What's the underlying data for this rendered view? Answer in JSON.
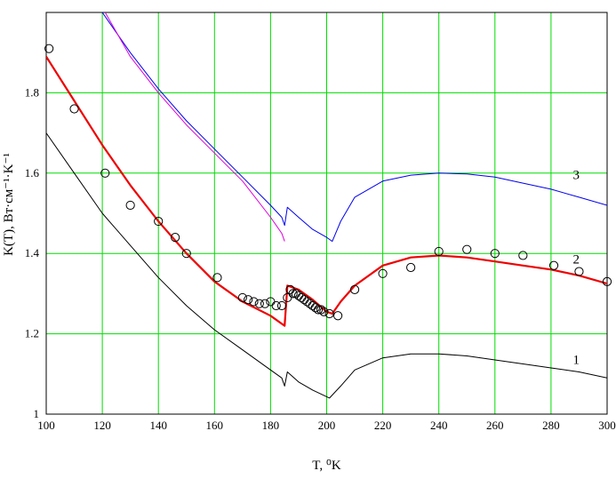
{
  "chart_data": {
    "type": "line",
    "xlabel": "T, ⁰K",
    "ylabel": "K(T), Вт·см⁻¹·K⁻¹",
    "xlim": [
      100,
      300
    ],
    "ylim": [
      1.0,
      2.0
    ],
    "x_ticks": [
      100,
      120,
      140,
      160,
      180,
      200,
      220,
      240,
      260,
      280,
      300
    ],
    "y_ticks": [
      1,
      1.2,
      1.4,
      1.6,
      1.8
    ],
    "x_tick_labels": [
      "100",
      "120",
      "140",
      "160",
      "180",
      "200",
      "220",
      "240",
      "260",
      "280",
      "300"
    ],
    "y_tick_labels": [
      "1",
      "1.2",
      "1.4",
      "1.6",
      "1.8"
    ],
    "grid": true,
    "grid_color": "#00dd00",
    "series": [
      {
        "name": "1",
        "color": "#000000",
        "width": 1,
        "x": [
          100,
          110,
          120,
          130,
          140,
          150,
          160,
          170,
          180,
          184,
          185,
          186,
          190,
          195,
          201,
          205,
          210,
          220,
          230,
          240,
          250,
          260,
          270,
          280,
          290,
          300
        ],
        "y": [
          1.7,
          1.6,
          1.5,
          1.42,
          1.34,
          1.27,
          1.21,
          1.16,
          1.11,
          1.09,
          1.07,
          1.105,
          1.08,
          1.06,
          1.04,
          1.07,
          1.11,
          1.14,
          1.15,
          1.15,
          1.145,
          1.135,
          1.125,
          1.115,
          1.105,
          1.09
        ]
      },
      {
        "name": "2",
        "color": "#ee0000",
        "width": 2.2,
        "x": [
          100,
          110,
          120,
          130,
          140,
          150,
          160,
          170,
          180,
          185,
          186,
          190,
          195,
          200,
          202,
          205,
          210,
          220,
          230,
          240,
          250,
          260,
          270,
          280,
          290,
          300
        ],
        "y": [
          1.89,
          1.78,
          1.67,
          1.57,
          1.48,
          1.4,
          1.33,
          1.28,
          1.245,
          1.22,
          1.32,
          1.31,
          1.285,
          1.255,
          1.25,
          1.28,
          1.32,
          1.37,
          1.39,
          1.395,
          1.39,
          1.38,
          1.37,
          1.36,
          1.345,
          1.325
        ]
      },
      {
        "name": "3",
        "color": "#0000ee",
        "width": 1,
        "x": [
          120,
          130,
          140,
          150,
          160,
          170,
          180,
          184,
          185,
          186,
          190,
          195,
          200,
          202,
          205,
          210,
          220,
          230,
          240,
          250,
          260,
          270,
          280,
          290,
          300
        ],
        "y": [
          2.0,
          1.9,
          1.81,
          1.73,
          1.66,
          1.59,
          1.52,
          1.49,
          1.47,
          1.515,
          1.49,
          1.46,
          1.44,
          1.43,
          1.48,
          1.54,
          1.58,
          1.595,
          1.6,
          1.598,
          1.59,
          1.575,
          1.56,
          1.54,
          1.52
        ]
      },
      {
        "name": "",
        "color": "#dd00dd",
        "width": 1,
        "x": [
          121,
          130,
          140,
          150,
          160,
          170,
          180,
          184,
          185
        ],
        "y": [
          2.0,
          1.89,
          1.8,
          1.72,
          1.65,
          1.58,
          1.49,
          1.45,
          1.43
        ]
      }
    ],
    "points": {
      "marker": "circle",
      "color": "#000000",
      "x": [
        101,
        110,
        121,
        130,
        140,
        146,
        150,
        161,
        170,
        172,
        174,
        176,
        178,
        180,
        182,
        184,
        186,
        187,
        188,
        189,
        190,
        191,
        192,
        193,
        194,
        195,
        196,
        197,
        198,
        199,
        201,
        204,
        210,
        220,
        230,
        240,
        250,
        260,
        270,
        281,
        290,
        300
      ],
      "y": [
        1.91,
        1.76,
        1.6,
        1.52,
        1.48,
        1.44,
        1.4,
        1.34,
        1.29,
        1.285,
        1.28,
        1.275,
        1.275,
        1.28,
        1.27,
        1.27,
        1.29,
        1.31,
        1.3,
        1.3,
        1.295,
        1.29,
        1.285,
        1.28,
        1.275,
        1.27,
        1.265,
        1.26,
        1.26,
        1.255,
        1.25,
        1.245,
        1.31,
        1.35,
        1.365,
        1.405,
        1.41,
        1.4,
        1.395,
        1.37,
        1.355,
        1.33
      ]
    },
    "curve_labels": [
      {
        "text": "1",
        "x": 289,
        "y": 1.125
      },
      {
        "text": "2",
        "x": 289,
        "y": 1.375
      },
      {
        "text": "3",
        "x": 289,
        "y": 1.585
      }
    ]
  }
}
